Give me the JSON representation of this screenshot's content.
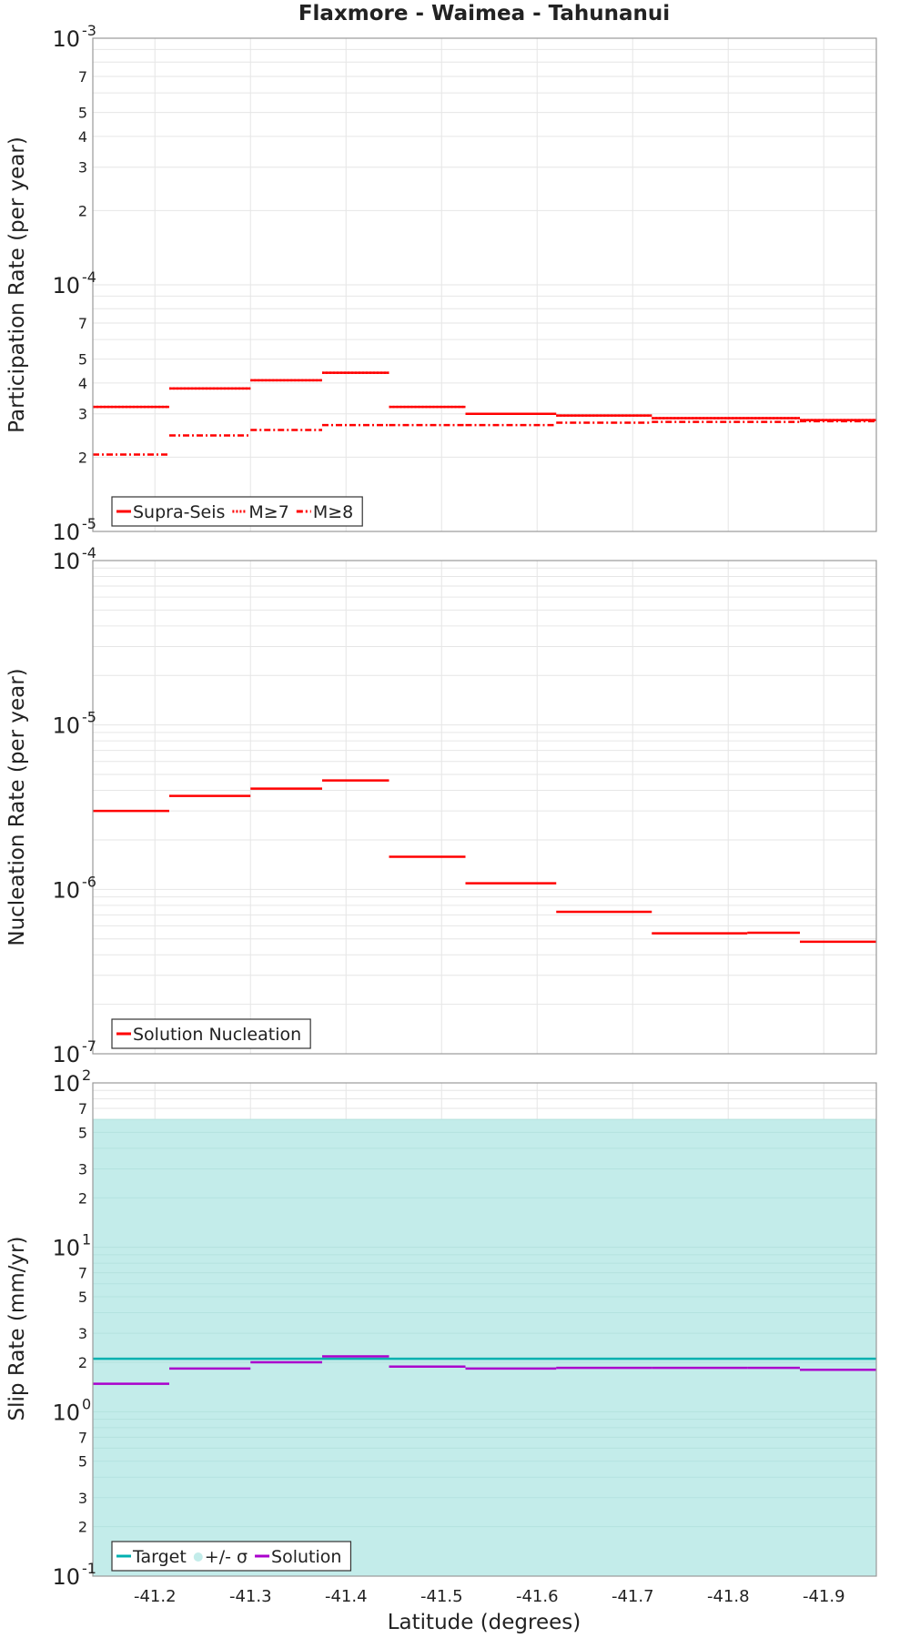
{
  "chart_data": [
    {
      "type": "step",
      "title": "Flaxmore - Waimea - Tahunanui",
      "xlabel": "Latitude (degrees)",
      "ylabel": "Participation Rate (per year)",
      "yscale": "log",
      "ylim": [
        1e-05,
        0.001
      ],
      "xlim": [
        -41.135,
        -41.955
      ],
      "decade_labels": [
        {
          "base": "10",
          "exp": "-5"
        },
        {
          "base": "10",
          "exp": "-4"
        },
        {
          "base": "10",
          "exp": "-3"
        }
      ],
      "minor_labels": [
        "2",
        "3",
        "4",
        "5",
        "7"
      ],
      "x_bins": [
        [
          -41.135,
          -41.215
        ],
        [
          -41.215,
          -41.3
        ],
        [
          -41.3,
          -41.375
        ],
        [
          -41.375,
          -41.445
        ],
        [
          -41.445,
          -41.525
        ],
        [
          -41.525,
          -41.62
        ],
        [
          -41.62,
          -41.72
        ],
        [
          -41.72,
          -41.82
        ],
        [
          -41.82,
          -41.875
        ],
        [
          -41.875,
          -41.955
        ]
      ],
      "series": [
        {
          "name": "Supra-Seis",
          "style": "solid",
          "color": "#ff0000",
          "values": [
            3.2e-05,
            3.8e-05,
            4.1e-05,
            4.4e-05,
            3.2e-05,
            3e-05,
            2.95e-05,
            2.88e-05,
            2.88e-05,
            2.83e-05
          ]
        },
        {
          "name": "M≥7",
          "style": "dotted",
          "color": "#ff0000",
          "values": [
            3.2e-05,
            3.8e-05,
            4.1e-05,
            4.4e-05,
            3.2e-05,
            3e-05,
            2.95e-05,
            2.88e-05,
            2.88e-05,
            2.83e-05
          ]
        },
        {
          "name": "M≥8",
          "style": "dashdot",
          "color": "#ff0000",
          "values": [
            2.05e-05,
            2.45e-05,
            2.58e-05,
            2.7e-05,
            2.7e-05,
            2.7e-05,
            2.76e-05,
            2.78e-05,
            2.78e-05,
            2.8e-05
          ]
        }
      ],
      "legend": "bottom-left"
    },
    {
      "type": "step",
      "ylabel": "Nucleation Rate (per year)",
      "yscale": "log",
      "ylim": [
        1e-07,
        0.0001
      ],
      "decade_labels": [
        {
          "base": "10",
          "exp": "-7"
        },
        {
          "base": "10",
          "exp": "-6"
        },
        {
          "base": "10",
          "exp": "-5"
        },
        {
          "base": "10",
          "exp": "-4"
        }
      ],
      "x_bins": [
        [
          -41.135,
          -41.215
        ],
        [
          -41.215,
          -41.3
        ],
        [
          -41.3,
          -41.375
        ],
        [
          -41.375,
          -41.445
        ],
        [
          -41.445,
          -41.525
        ],
        [
          -41.525,
          -41.62
        ],
        [
          -41.62,
          -41.72
        ],
        [
          -41.72,
          -41.82
        ],
        [
          -41.82,
          -41.875
        ],
        [
          -41.875,
          -41.955
        ]
      ],
      "series": [
        {
          "name": "Solution Nucleation",
          "style": "solid",
          "color": "#ff0000",
          "values": [
            3e-06,
            3.7e-06,
            4.1e-06,
            4.6e-06,
            1.58e-06,
            1.09e-06,
            7.3e-07,
            5.4e-07,
            5.45e-07,
            4.8e-07
          ]
        }
      ],
      "legend": "bottom-left"
    },
    {
      "type": "step",
      "ylabel": "Slip Rate (mm/yr)",
      "xlabel": "Latitude (degrees)",
      "yscale": "log",
      "ylim": [
        0.1,
        100
      ],
      "decade_labels": [
        {
          "base": "10",
          "exp": "-1"
        },
        {
          "base": "10",
          "exp": "0"
        },
        {
          "base": "10",
          "exp": "1"
        },
        {
          "base": "10",
          "exp": "2"
        }
      ],
      "minor_labels": [
        "2",
        "3",
        "5",
        "7"
      ],
      "x_ticks": [
        "-41.2",
        "-41.3",
        "-41.4",
        "-41.5",
        "-41.6",
        "-41.7",
        "-41.8",
        "-41.9"
      ],
      "x_tick_values": [
        -41.2,
        -41.3,
        -41.4,
        -41.5,
        -41.6,
        -41.7,
        -41.8,
        -41.9
      ],
      "sigma_band": {
        "name": "+/- σ",
        "low": 0.1,
        "high": 60,
        "color": "#c3ecea"
      },
      "target": {
        "name": "Target",
        "value": 2.1,
        "color": "#00b0b0"
      },
      "x_bins": [
        [
          -41.135,
          -41.215
        ],
        [
          -41.215,
          -41.3
        ],
        [
          -41.3,
          -41.375
        ],
        [
          -41.375,
          -41.445
        ],
        [
          -41.445,
          -41.525
        ],
        [
          -41.525,
          -41.62
        ],
        [
          -41.62,
          -41.72
        ],
        [
          -41.72,
          -41.82
        ],
        [
          -41.82,
          -41.875
        ],
        [
          -41.875,
          -41.955
        ]
      ],
      "series": [
        {
          "name": "Solution",
          "style": "solid",
          "color": "#aa00cc",
          "values": [
            1.48,
            1.83,
            2.0,
            2.17,
            1.88,
            1.83,
            1.85,
            1.85,
            1.85,
            1.8
          ]
        }
      ],
      "legend": "bottom-left"
    }
  ]
}
